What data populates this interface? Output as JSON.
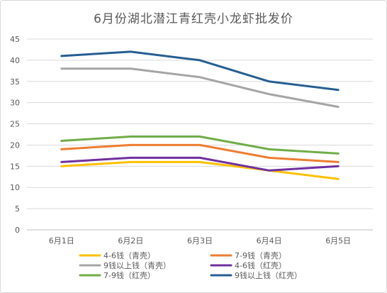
{
  "chart_data": {
    "type": "line",
    "title": "6月份湖北潜江青红壳小龙虾批发价",
    "xlabel": "",
    "ylabel": "",
    "categories": [
      "6月1日",
      "6月2日",
      "6月3日",
      "6月4日",
      "6月5日"
    ],
    "ylim": [
      0,
      45
    ],
    "yticks": [
      0,
      5,
      10,
      15,
      20,
      25,
      30,
      35,
      40,
      45
    ],
    "grid": true,
    "legend_position": "bottom",
    "series": [
      {
        "name": "4-6钱（青壳）",
        "color": "#FFC000",
        "values": [
          15,
          16,
          16,
          14,
          12
        ]
      },
      {
        "name": "7-9钱（青壳）",
        "color": "#ED7D31",
        "values": [
          19,
          20,
          20,
          17,
          16
        ]
      },
      {
        "name": "9钱以上钱（青壳）",
        "color": "#A5A5A5",
        "values": [
          38,
          38,
          36,
          32,
          29
        ]
      },
      {
        "name": "4-6钱（红壳）",
        "color": "#7030A0",
        "values": [
          16,
          17,
          17,
          14,
          15
        ]
      },
      {
        "name": "7-9钱（红壳）",
        "color": "#70AD47",
        "values": [
          21,
          22,
          22,
          19,
          18
        ]
      },
      {
        "name": "9钱以上钱（红壳）",
        "color": "#255E91",
        "values": [
          41,
          42,
          40,
          35,
          33
        ]
      }
    ]
  }
}
